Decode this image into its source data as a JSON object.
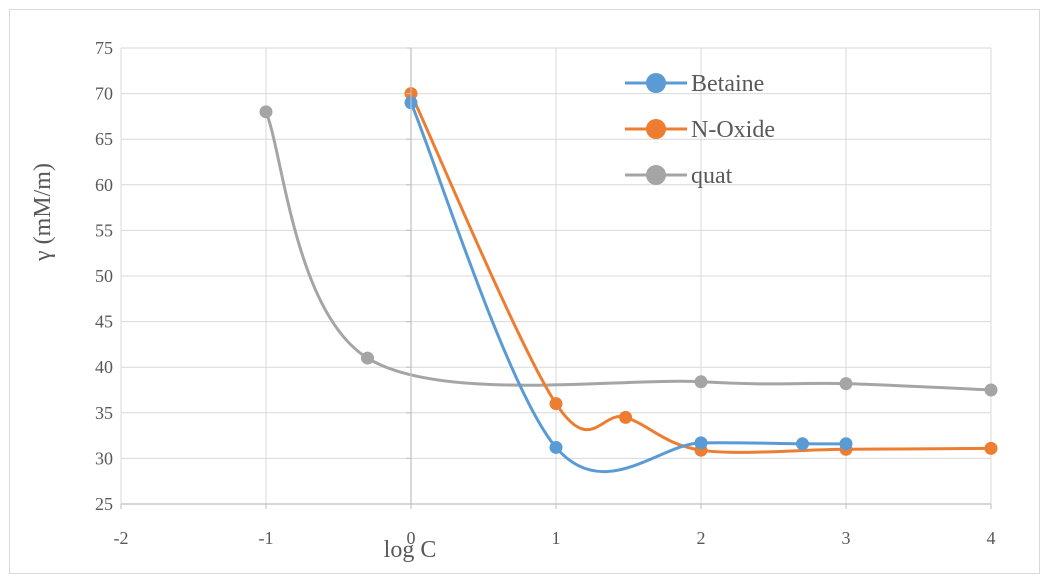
{
  "chart_data": {
    "type": "line",
    "smooth": true,
    "markers": true,
    "title": "",
    "xlabel": "log C",
    "ylabel": "γ (mM/m)",
    "xlim": [
      -2,
      4
    ],
    "ylim": [
      25,
      75
    ],
    "x_ticks": [
      "-2",
      "-1",
      "0",
      "1",
      "2",
      "3",
      "4"
    ],
    "y_ticks": [
      "25",
      "30",
      "35",
      "40",
      "45",
      "50",
      "55",
      "60",
      "65",
      "70",
      "75"
    ],
    "grid": true,
    "legend_position": "top-right",
    "series": [
      {
        "name": "Betaine",
        "color": "#5b9bd5",
        "points": [
          [
            0,
            69
          ],
          [
            1,
            31.2
          ],
          [
            2,
            31.7
          ],
          [
            2.7,
            31.6
          ],
          [
            3,
            31.6
          ]
        ]
      },
      {
        "name": "N-Oxide",
        "color": "#ed7d31",
        "points": [
          [
            0,
            70
          ],
          [
            1,
            36
          ],
          [
            1.48,
            34.5
          ],
          [
            2,
            30.9
          ],
          [
            3,
            31
          ],
          [
            4,
            31.1
          ]
        ]
      },
      {
        "name": "quat",
        "color": "#a5a5a5",
        "points": [
          [
            -1,
            68
          ],
          [
            -0.3,
            41
          ],
          [
            2,
            38.4
          ],
          [
            3,
            38.2
          ],
          [
            4,
            37.5
          ]
        ]
      }
    ]
  }
}
